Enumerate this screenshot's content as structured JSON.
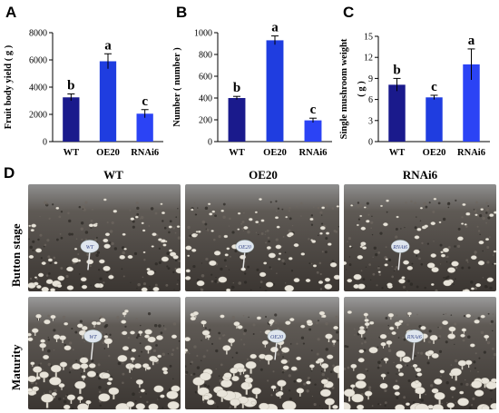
{
  "panels": {
    "a": "A",
    "b": "B",
    "c": "C",
    "d": "D"
  },
  "chart_data": [
    {
      "type": "bar",
      "panel": "A",
      "categories": [
        "WT",
        "OE20",
        "RNAi6"
      ],
      "values": [
        3250,
        5900,
        2050
      ],
      "errors": [
        250,
        550,
        300
      ],
      "significance": [
        "b",
        "a",
        "c"
      ],
      "ylabel": "Fruit body yield ( g )",
      "ylim": [
        0,
        8000
      ],
      "yticks": [
        0,
        2000,
        4000,
        6000,
        8000
      ],
      "colors": [
        "#1a1a8c",
        "#1f3de0",
        "#2b43f5"
      ]
    },
    {
      "type": "bar",
      "panel": "B",
      "categories": [
        "WT",
        "OE20",
        "RNAi6"
      ],
      "values": [
        400,
        930,
        195
      ],
      "errors": [
        15,
        40,
        20
      ],
      "significance": [
        "b",
        "a",
        "c"
      ],
      "ylabel": "Number ( number )",
      "ylim": [
        0,
        1000
      ],
      "yticks": [
        0,
        200,
        400,
        600,
        800,
        1000
      ],
      "colors": [
        "#1a1a8c",
        "#1f3de0",
        "#2b43f5"
      ]
    },
    {
      "type": "bar",
      "panel": "C",
      "categories": [
        "WT",
        "OE20",
        "RNAi6"
      ],
      "values": [
        8.1,
        6.3,
        11.0
      ],
      "errors": [
        0.9,
        0.3,
        2.2
      ],
      "significance": [
        "b",
        "c",
        "a"
      ],
      "ylabel": "Single mushroom weight",
      "ylabel2": "( g )",
      "ylim": [
        0,
        15
      ],
      "yticks": [
        0,
        3,
        6,
        9,
        12,
        15
      ],
      "colors": [
        "#1a1a8c",
        "#1f3de0",
        "#2b43f5"
      ]
    }
  ],
  "photos": {
    "columns": [
      "WT",
      "OE20",
      "RNAi6"
    ],
    "rows": [
      "Button stage",
      "Maturity"
    ],
    "tag_texts": [
      "WT",
      "OE20",
      "RNAi6"
    ]
  }
}
